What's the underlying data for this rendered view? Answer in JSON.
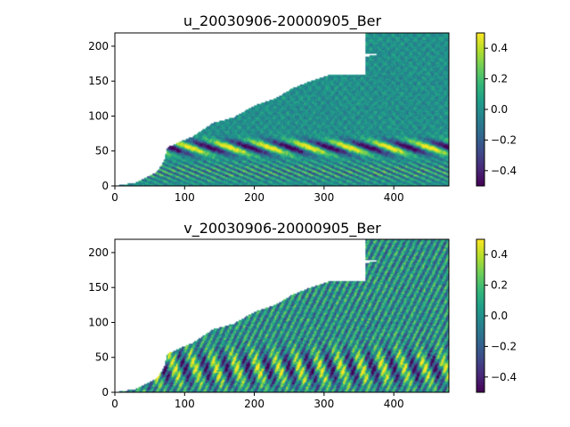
{
  "figure": {
    "colormap": "viridis",
    "colormap_stops": [
      "#440154",
      "#482878",
      "#3e4a89",
      "#31688e",
      "#26828e",
      "#1f9e89",
      "#35b779",
      "#6ece58",
      "#b5de2b",
      "#fde725"
    ],
    "land_color": "#ffffff"
  },
  "chart_data": [
    {
      "type": "heatmap",
      "title": "u_20030906-20000905_Ber",
      "xlabel": "",
      "ylabel": "",
      "xlim": [
        0,
        479
      ],
      "ylim": [
        0,
        219
      ],
      "x_ticks": [
        0,
        100,
        200,
        300,
        400
      ],
      "y_ticks": [
        0,
        50,
        100,
        150,
        200
      ],
      "x_tick_labels": [
        "0",
        "100",
        "200",
        "300",
        "400"
      ],
      "y_tick_labels": [
        "0",
        "50",
        "100",
        "150",
        "200"
      ],
      "colorbar": {
        "range": [
          -0.5,
          0.5
        ],
        "ticks": [
          0.4,
          0.2,
          0.0,
          -0.2,
          -0.4
        ],
        "tick_labels": [
          "0.4",
          "0.2",
          "0.0",
          "−0.2",
          "−0.4"
        ]
      },
      "grid": false
    },
    {
      "type": "heatmap",
      "title": "v_20030906-20000905_Ber",
      "xlabel": "",
      "ylabel": "",
      "xlim": [
        0,
        479
      ],
      "ylim": [
        0,
        219
      ],
      "x_ticks": [
        0,
        100,
        200,
        300,
        400
      ],
      "y_ticks": [
        0,
        50,
        100,
        150,
        200
      ],
      "x_tick_labels": [
        "0",
        "100",
        "200",
        "300",
        "400"
      ],
      "y_tick_labels": [
        "0",
        "50",
        "100",
        "150",
        "200"
      ],
      "colorbar": {
        "range": [
          -0.5,
          0.5
        ],
        "ticks": [
          0.4,
          0.2,
          0.0,
          -0.2,
          -0.4
        ],
        "tick_labels": [
          "0.4",
          "0.2",
          "0.0",
          "−0.2",
          "−0.4"
        ]
      },
      "grid": false
    }
  ]
}
